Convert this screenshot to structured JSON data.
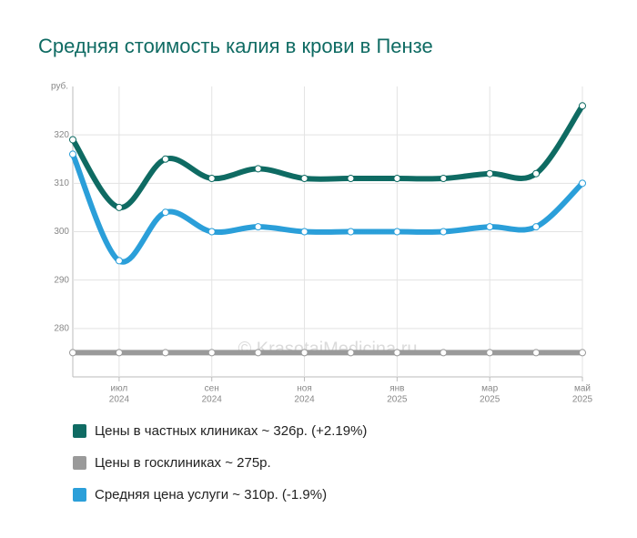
{
  "chart_data": {
    "type": "line",
    "title": "Средняя стоимость калия в крови в Пензе",
    "y_unit": "руб.",
    "watermark": "© KrasotaiMedicina.ru",
    "categories": [
      null,
      {
        "month": "июл",
        "year": "2024"
      },
      null,
      {
        "month": "сен",
        "year": "2024"
      },
      null,
      {
        "month": "ноя",
        "year": "2024"
      },
      null,
      {
        "month": "янв",
        "year": "2025"
      },
      null,
      {
        "month": "мар",
        "year": "2025"
      },
      null,
      {
        "month": "май",
        "year": "2025"
      }
    ],
    "series": [
      {
        "name": "Цены в частных клиниках ~ 326р. (+2.19%)",
        "color": "#0f6b63",
        "values": [
          319,
          305,
          315,
          311,
          313,
          311,
          311,
          311,
          311,
          312,
          312,
          326
        ]
      },
      {
        "name": "Цены в госклиниках ~ 275р.",
        "color": "#9a9a9a",
        "values": [
          275,
          275,
          275,
          275,
          275,
          275,
          275,
          275,
          275,
          275,
          275,
          275
        ]
      },
      {
        "name": "Средняя цена услуги ~ 310р. (-1.9%)",
        "color": "#2b9fd9",
        "values": [
          316,
          294,
          304,
          300,
          301,
          300,
          300,
          300,
          300,
          301,
          301,
          310
        ]
      }
    ],
    "ylim": [
      270,
      330
    ],
    "yticks": [
      280,
      290,
      300,
      310,
      320
    ],
    "grid": true
  }
}
